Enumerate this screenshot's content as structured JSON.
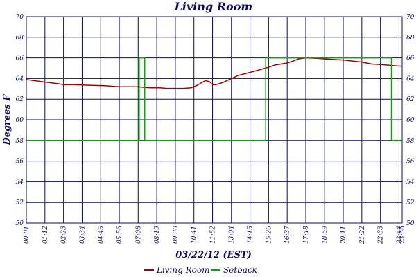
{
  "chart_data": {
    "type": "line",
    "title": "Living Room",
    "xlabel": "03/22/12 (EST)",
    "ylabel": "Degrees F",
    "ylim": [
      50,
      70
    ],
    "yticks": [
      50,
      52,
      54,
      56,
      58,
      60,
      62,
      64,
      66,
      68,
      70
    ],
    "xlim_minutes": [
      1,
      1436
    ],
    "xticks": [
      "00:01",
      "01:12",
      "02:23",
      "03:34",
      "04:45",
      "05:56",
      "07:08",
      "08:19",
      "09:30",
      "10:41",
      "11:52",
      "13:04",
      "14:15",
      "15:26",
      "16:37",
      "17:48",
      "18:59",
      "20:11",
      "21:22",
      "22:33",
      "23:44",
      "23:56"
    ],
    "grid": true,
    "legend_position": "bottom",
    "series": [
      {
        "name": "Living Room",
        "color": "#aa0000",
        "points": [
          [
            "00:01",
            63.9
          ],
          [
            "00:30",
            63.8
          ],
          [
            "01:00",
            63.7
          ],
          [
            "01:30",
            63.6
          ],
          [
            "02:00",
            63.5
          ],
          [
            "02:23",
            63.4
          ],
          [
            "03:00",
            63.4
          ],
          [
            "04:00",
            63.35
          ],
          [
            "05:00",
            63.3
          ],
          [
            "05:56",
            63.2
          ],
          [
            "06:30",
            63.2
          ],
          [
            "07:08",
            63.2
          ],
          [
            "07:30",
            63.15
          ],
          [
            "08:00",
            63.1
          ],
          [
            "08:30",
            63.1
          ],
          [
            "09:00",
            63.05
          ],
          [
            "09:30",
            63.05
          ],
          [
            "10:00",
            63.05
          ],
          [
            "10:30",
            63.1
          ],
          [
            "10:50",
            63.3
          ],
          [
            "11:10",
            63.6
          ],
          [
            "11:25",
            63.8
          ],
          [
            "11:40",
            63.7
          ],
          [
            "11:52",
            63.4
          ],
          [
            "12:05",
            63.4
          ],
          [
            "12:30",
            63.6
          ],
          [
            "13:04",
            64.0
          ],
          [
            "13:30",
            64.3
          ],
          [
            "14:15",
            64.6
          ],
          [
            "14:45",
            64.8
          ],
          [
            "15:26",
            65.1
          ],
          [
            "15:50",
            65.3
          ],
          [
            "16:37",
            65.5
          ],
          [
            "17:00",
            65.7
          ],
          [
            "17:20",
            65.9
          ],
          [
            "17:48",
            66.0
          ],
          [
            "18:30",
            65.95
          ],
          [
            "18:59",
            65.9
          ],
          [
            "19:30",
            65.85
          ],
          [
            "20:11",
            65.8
          ],
          [
            "20:45",
            65.7
          ],
          [
            "21:22",
            65.6
          ],
          [
            "22:00",
            65.4
          ],
          [
            "22:33",
            65.35
          ],
          [
            "23:00",
            65.3
          ],
          [
            "23:20",
            65.25
          ],
          [
            "23:44",
            65.2
          ],
          [
            "23:56",
            65.2
          ]
        ]
      },
      {
        "name": "Setback",
        "color": "#00aa00",
        "points": [
          [
            "00:01",
            58
          ],
          [
            "07:12",
            58
          ],
          [
            "07:12",
            66
          ],
          [
            "07:33",
            66
          ],
          [
            "07:33",
            58
          ],
          [
            "15:15",
            58
          ],
          [
            "15:15",
            66
          ],
          [
            "23:15",
            66
          ],
          [
            "23:15",
            58
          ],
          [
            "23:56",
            58
          ]
        ]
      }
    ]
  }
}
